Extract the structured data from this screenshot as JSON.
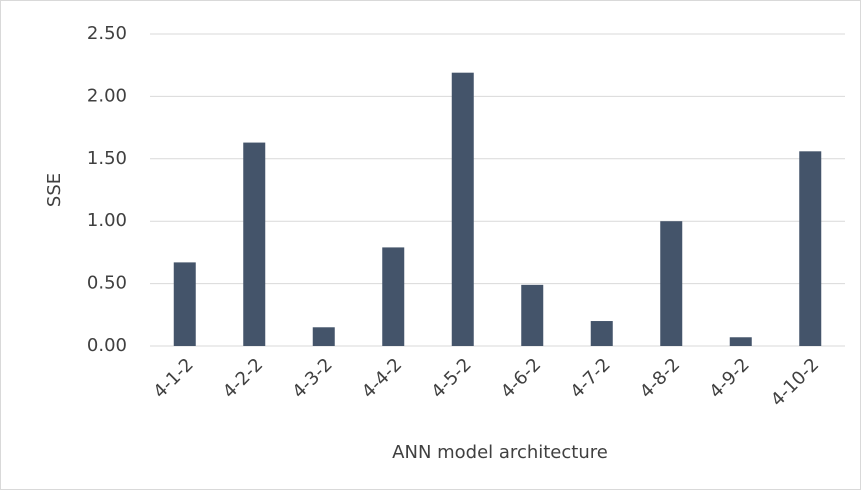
{
  "chart_data": {
    "type": "bar",
    "x_label": "ANN model architecture",
    "y_label": "SSE",
    "categories": [
      "4-1-2",
      "4-2-2",
      "4-3-2",
      "4-4-2",
      "4-5-2",
      "4-6-2",
      "4-7-2",
      "4-8-2",
      "4-9-2",
      "4-10-2"
    ],
    "values": [
      0.67,
      1.63,
      0.15,
      0.79,
      2.19,
      0.49,
      0.2,
      1.0,
      0.07,
      1.56
    ],
    "color": "#44546a",
    "ylim": [
      0,
      2.5
    ],
    "yticks": [
      {
        "value": 0,
        "label": "0.00"
      },
      {
        "value": 0.5,
        "label": "0.50"
      },
      {
        "value": 1,
        "label": "1.00"
      },
      {
        "value": 1.5,
        "label": "1.50"
      },
      {
        "value": 2,
        "label": "2.00"
      },
      {
        "value": 2.5,
        "label": "2.50"
      }
    ],
    "grid": true
  }
}
